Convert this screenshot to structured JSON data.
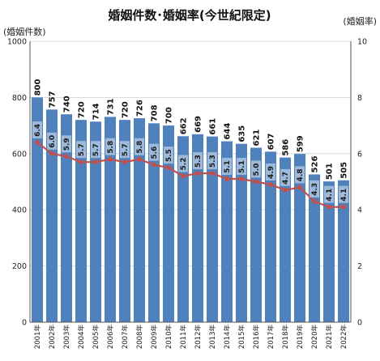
{
  "chart_data": {
    "type": "bar",
    "title": "婚姻件数･婚姻率(今世紀限定)",
    "ylabel_left": "(婚姻件数)",
    "ylabel_right": "(婚姻率)",
    "ylim_left": [
      0,
      1000
    ],
    "yticks_left": [
      "0",
      "200",
      "400",
      "600",
      "800",
      "1000"
    ],
    "ylim_right": [
      0,
      10
    ],
    "yticks_right": [
      "0",
      "2",
      "4",
      "6",
      "8",
      "10"
    ],
    "grid": true,
    "categories": [
      "2001年",
      "2002年",
      "2003年",
      "2004年",
      "2005年",
      "2006年",
      "2007年",
      "2008年",
      "2009年",
      "2010年",
      "2011年",
      "2012年",
      "2013年",
      "2014年",
      "2015年",
      "2016年",
      "2017年",
      "2018年",
      "2019年",
      "2020年",
      "2021年",
      "2022年"
    ],
    "series": [
      {
        "kind": "bar",
        "axis": "left",
        "color": "#4f81bd",
        "values": [
          800,
          757,
          740,
          720,
          714,
          731,
          720,
          726,
          708,
          700,
          662,
          669,
          661,
          644,
          635,
          621,
          607,
          586,
          599,
          526,
          501,
          505
        ],
        "labels": [
          "800",
          "757",
          "740",
          "720",
          "714",
          "731",
          "720",
          "726",
          "708",
          "700",
          "662",
          "669",
          "661",
          "644",
          "635",
          "621",
          "607",
          "586",
          "599",
          "526",
          "501",
          "505"
        ]
      },
      {
        "kind": "line",
        "axis": "right",
        "color": "#c0504d",
        "values": [
          6.4,
          6.0,
          5.9,
          5.7,
          5.7,
          5.8,
          5.7,
          5.8,
          5.6,
          5.5,
          5.2,
          5.3,
          5.3,
          5.1,
          5.1,
          5.0,
          4.9,
          4.7,
          4.8,
          4.3,
          4.1,
          4.1
        ],
        "labels": [
          "6.4",
          "6.0",
          "5.9",
          "5.7",
          "5.7",
          "5.8",
          "5.7",
          "5.8",
          "5.6",
          "5.5",
          "5.2",
          "5.3",
          "5.3",
          "5.1",
          "5.1",
          "5.0",
          "4.9",
          "4.7",
          "4.8",
          "4.3",
          "4.1",
          "4.1"
        ]
      }
    ]
  }
}
